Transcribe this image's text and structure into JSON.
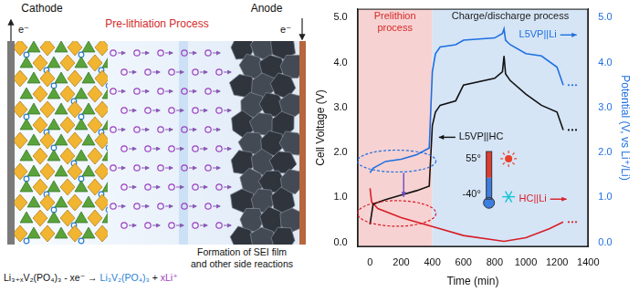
{
  "chart_data": {
    "type": "line",
    "marker": "none",
    "x_label": "Time (min)",
    "y_label": "Cell Voltage (V)",
    "y2_label": "Potential (V, vs Li⁺/Li)",
    "xlim": [
      -80,
      1400
    ],
    "xticks": [
      0,
      200,
      400,
      600,
      800,
      1000,
      1200,
      1400
    ],
    "ylim": [
      -0.1,
      5.2
    ],
    "yticks": [
      {
        "value": 0,
        "label": "0.0"
      },
      {
        "value": 1,
        "label": "1.0"
      },
      {
        "value": 2,
        "label": "2.0"
      },
      {
        "value": 3,
        "label": "3.0"
      },
      {
        "value": 4,
        "label": "4.0"
      },
      {
        "value": 5,
        "label": "5.0"
      }
    ],
    "y2lim": [
      -0.1,
      5.2
    ],
    "y2ticks": [
      {
        "value": 0,
        "label": "0.0"
      },
      {
        "value": 1,
        "label": "1.0"
      },
      {
        "value": 2,
        "label": "2.0"
      },
      {
        "value": 3,
        "label": "3.0"
      },
      {
        "value": 4,
        "label": "4.0"
      },
      {
        "value": 5,
        "label": "5.0"
      }
    ],
    "grid": false,
    "series": [
      {
        "name": "L5VP||HC",
        "color": "#111111",
        "x": [
          0,
          20,
          100,
          200,
          300,
          380,
          400,
          420,
          450,
          550,
          600,
          800,
          850,
          860,
          870,
          900,
          1000,
          1100,
          1200,
          1240
        ],
        "values": [
          0.4,
          0.85,
          0.95,
          1.05,
          1.15,
          1.25,
          2.6,
          2.9,
          3.05,
          3.15,
          3.5,
          3.65,
          3.8,
          4.15,
          3.75,
          3.6,
          3.3,
          3.05,
          2.9,
          2.5
        ]
      },
      {
        "name": "L5VP||Li",
        "color": "#1f6fe0",
        "axis": "y2",
        "x": [
          0,
          20,
          100,
          200,
          300,
          380,
          400,
          420,
          450,
          550,
          600,
          800,
          850,
          860,
          870,
          900,
          1000,
          1100,
          1200,
          1240
        ],
        "values": [
          1.55,
          1.65,
          1.8,
          1.85,
          1.95,
          2.1,
          3.8,
          4.2,
          4.35,
          4.4,
          4.5,
          4.55,
          4.65,
          4.75,
          4.5,
          4.4,
          4.2,
          4.15,
          3.9,
          3.5
        ]
      },
      {
        "name": "HC||Li",
        "color": "#d81e28",
        "axis": "y2",
        "x": [
          0,
          10,
          50,
          200,
          400,
          600,
          800,
          860,
          1000,
          1150,
          1240
        ],
        "values": [
          1.2,
          0.9,
          0.75,
          0.55,
          0.35,
          0.15,
          0.05,
          0.02,
          0.1,
          0.3,
          0.45
        ]
      }
    ],
    "regions": [
      {
        "text": [
          "Prelithion",
          "process"
        ],
        "x": [
          -80,
          400
        ],
        "color": "#f7d2d2"
      },
      {
        "text": [
          "Charge/discharge process"
        ],
        "x": [
          400,
          1400
        ],
        "color": "#d5e5f6"
      }
    ],
    "annotations": [
      "55°",
      "-40°"
    ]
  },
  "diagram": {
    "cathode": "Cathode",
    "anode": "Anode",
    "electron": "e⁻",
    "title": "Pre-lithiation Process",
    "equation": [
      {
        "text": "Li₃₊ₓV₂(PO₄)₃ - xe⁻ → "
      },
      {
        "text": "Li₃V₂(PO₄)₃",
        "color": "#2a7fd6"
      },
      {
        "text": " + "
      },
      {
        "text": "xLi⁺",
        "color": "#9b3fc0"
      }
    ],
    "side_reactions": [
      "Formation of SEI film",
      "and other side reactions"
    ]
  }
}
